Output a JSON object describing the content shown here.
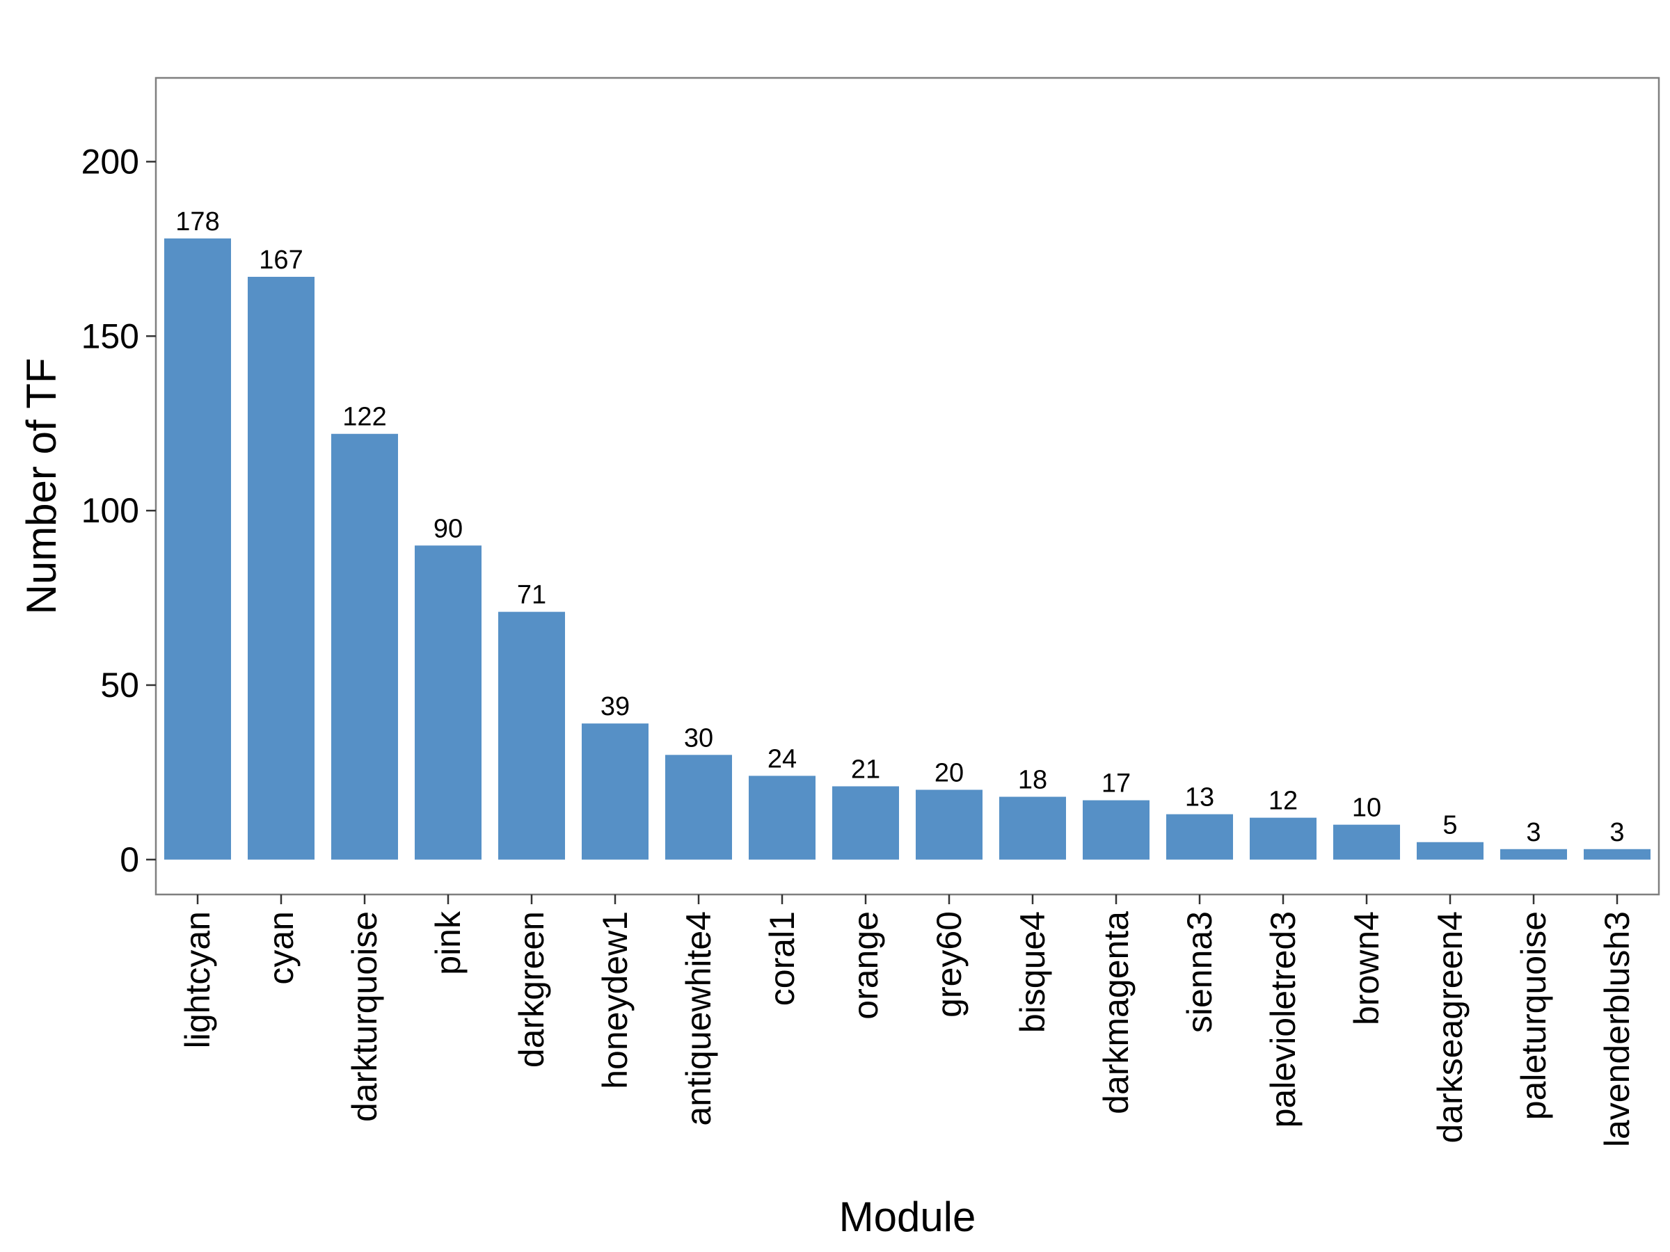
{
  "chart_data": {
    "type": "bar",
    "title": "",
    "xlabel": "Module",
    "ylabel": "Number of TF",
    "categories": [
      "lightcyan",
      "cyan",
      "darkturquoise",
      "pink",
      "darkgreen",
      "honeydew1",
      "antiquewhite4",
      "coral1",
      "orange",
      "grey60",
      "bisque4",
      "darkmagenta",
      "sienna3",
      "palevioletred3",
      "brown4",
      "darkseagreen4",
      "paleturquoise",
      "lavenderblush3"
    ],
    "values": [
      178,
      167,
      122,
      90,
      71,
      39,
      30,
      24,
      21,
      20,
      18,
      17,
      13,
      12,
      10,
      5,
      3,
      3
    ],
    "ylim": [
      -10,
      224
    ],
    "yticks": [
      0,
      50,
      100,
      150,
      200
    ],
    "grid": false,
    "legend": "none",
    "bar_color": "#5690c6",
    "data_labels": true
  }
}
